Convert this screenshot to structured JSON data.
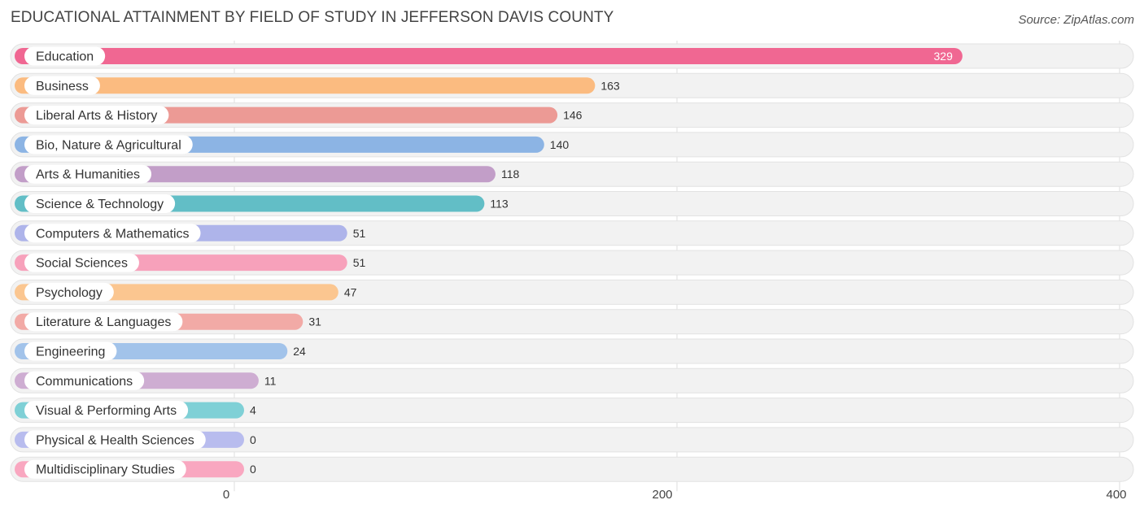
{
  "chart_data": {
    "type": "bar",
    "orientation": "horizontal",
    "title": "EDUCATIONAL ATTAINMENT BY FIELD OF STUDY IN JEFFERSON DAVIS COUNTY",
    "source": "Source: ZipAtlas.com",
    "xlim": [
      0,
      400
    ],
    "xticks": [
      0,
      200,
      400
    ],
    "xtick_labels": [
      "0",
      "200",
      "400"
    ],
    "categories": [
      "Education",
      "Business",
      "Liberal Arts & History",
      "Bio, Nature & Agricultural",
      "Arts & Humanities",
      "Science & Technology",
      "Computers & Mathematics",
      "Social Sciences",
      "Psychology",
      "Literature & Languages",
      "Engineering",
      "Communications",
      "Visual & Performing Arts",
      "Physical & Health Sciences",
      "Multidisciplinary Studies"
    ],
    "values": [
      329,
      163,
      146,
      140,
      118,
      113,
      51,
      51,
      47,
      31,
      24,
      11,
      4,
      0,
      0
    ],
    "colors": [
      "#f06792",
      "#fbbb80",
      "#ec9a95",
      "#8cb4e4",
      "#c29ec8",
      "#62bec6",
      "#aeb4ea",
      "#f7a1bb",
      "#fbc690",
      "#f2aaa6",
      "#a2c3ea",
      "#ceadd2",
      "#7fd0d6",
      "#b8bcee",
      "#f9a7c0"
    ]
  }
}
